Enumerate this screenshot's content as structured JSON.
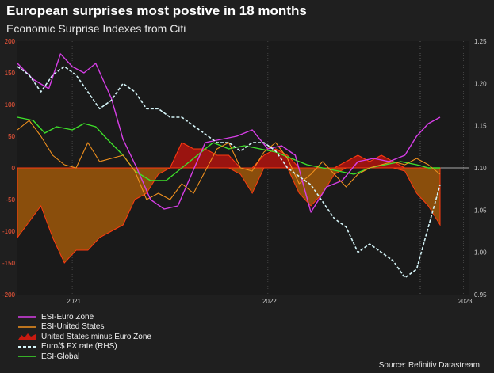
{
  "header": {
    "title": "European surprises most postive in 18 months",
    "subtitle": "Economic Surprise Indexes from Citi"
  },
  "source": "Source: Refinitiv Datastream",
  "chart_data": {
    "type": "line",
    "title": "European surprises most postive in 18 months",
    "subtitle": "Economic Surprise Indexes from Citi",
    "x_ticks": [
      "2021",
      "2022",
      "2023"
    ],
    "x_tick_values": [
      2021.0,
      2022.0,
      2023.0
    ],
    "xlim": [
      2020.72,
      2023.03
    ],
    "y_left_ticks": [
      200,
      150,
      100,
      50,
      0,
      -50,
      -100,
      -150,
      -200
    ],
    "ylim_left": [
      -200,
      200
    ],
    "y_right_ticks": [
      1.25,
      1.2,
      1.15,
      1.1,
      1.05,
      1.0,
      0.95
    ],
    "ylim_right": [
      0.95,
      1.25
    ],
    "legend": [
      {
        "label": "ESI-Euro Zone",
        "color": "#d63ee6",
        "style": "line"
      },
      {
        "label": "ESI-United States",
        "color": "#f0901e",
        "style": "line"
      },
      {
        "label": "United States minus Euro Zone",
        "color": "#c81a10",
        "style": "area"
      },
      {
        "label": "Euro/$ FX rate (RHS)",
        "color": "#d4f4f8",
        "style": "dashed"
      },
      {
        "label": "ESI-Global",
        "color": "#3ee02a",
        "style": "line"
      }
    ],
    "series": [
      {
        "name": "ESI-Euro Zone",
        "axis": "left",
        "color": "#d63ee6",
        "x": [
          2020.72,
          2020.8,
          2020.88,
          2020.94,
          2021.0,
          2021.06,
          2021.12,
          2021.2,
          2021.26,
          2021.33,
          2021.4,
          2021.47,
          2021.54,
          2021.61,
          2021.68,
          2021.76,
          2021.84,
          2021.92,
          2022.0,
          2022.07,
          2022.14,
          2022.22,
          2022.3,
          2022.38,
          2022.46,
          2022.54,
          2022.62,
          2022.7,
          2022.76,
          2022.82,
          2022.88
        ],
        "values": [
          165,
          140,
          125,
          180,
          160,
          150,
          165,
          110,
          45,
          0,
          -50,
          -65,
          -60,
          -10,
          40,
          45,
          50,
          60,
          30,
          35,
          20,
          -70,
          -30,
          -20,
          10,
          15,
          10,
          20,
          50,
          70,
          80
        ]
      },
      {
        "name": "ESI-United States",
        "axis": "left",
        "color": "#f0901e",
        "x": [
          2020.72,
          2020.78,
          2020.84,
          2020.9,
          2020.96,
          2021.02,
          2021.08,
          2021.14,
          2021.2,
          2021.26,
          2021.32,
          2021.38,
          2021.44,
          2021.5,
          2021.56,
          2021.62,
          2021.68,
          2021.74,
          2021.8,
          2021.86,
          2021.92,
          2021.98,
          2022.04,
          2022.1,
          2022.16,
          2022.22,
          2022.28,
          2022.34,
          2022.4,
          2022.46,
          2022.52,
          2022.58,
          2022.64,
          2022.7,
          2022.76,
          2022.82,
          2022.88
        ],
        "values": [
          60,
          75,
          50,
          20,
          5,
          0,
          40,
          10,
          15,
          20,
          -5,
          -50,
          -40,
          -50,
          -25,
          -40,
          -5,
          30,
          40,
          0,
          -5,
          25,
          40,
          15,
          -25,
          -10,
          10,
          -10,
          -30,
          -10,
          0,
          5,
          10,
          5,
          15,
          5,
          -10
        ]
      },
      {
        "name": "United States minus Euro Zone",
        "axis": "left",
        "color": "#c81a10",
        "x": [
          2020.72,
          2020.78,
          2020.84,
          2020.9,
          2020.96,
          2021.02,
          2021.08,
          2021.14,
          2021.2,
          2021.26,
          2021.32,
          2021.38,
          2021.44,
          2021.5,
          2021.56,
          2021.62,
          2021.68,
          2021.74,
          2021.8,
          2021.86,
          2021.92,
          2021.98,
          2022.04,
          2022.1,
          2022.16,
          2022.22,
          2022.28,
          2022.34,
          2022.4,
          2022.46,
          2022.52,
          2022.58,
          2022.64,
          2022.7,
          2022.76,
          2022.82,
          2022.88
        ],
        "values": [
          -110,
          -85,
          -60,
          -110,
          -150,
          -130,
          -130,
          -110,
          -100,
          -90,
          -50,
          -40,
          -10,
          0,
          40,
          30,
          30,
          20,
          20,
          -10,
          -40,
          20,
          30,
          20,
          -40,
          -60,
          -40,
          -10,
          10,
          20,
          10,
          20,
          10,
          -5,
          -40,
          -60,
          -90
        ]
      },
      {
        "name": "Euro/$ FX rate (RHS)",
        "axis": "right",
        "color": "#d4f4f8",
        "x": [
          2020.72,
          2020.78,
          2020.84,
          2020.9,
          2020.96,
          2021.02,
          2021.08,
          2021.14,
          2021.2,
          2021.26,
          2021.32,
          2021.38,
          2021.44,
          2021.5,
          2021.56,
          2021.62,
          2021.68,
          2021.74,
          2021.8,
          2021.86,
          2021.92,
          2021.98,
          2022.04,
          2022.1,
          2022.16,
          2022.22,
          2022.28,
          2022.34,
          2022.4,
          2022.46,
          2022.52,
          2022.58,
          2022.64,
          2022.7,
          2022.76,
          2022.82,
          2022.88
        ],
        "values": [
          1.22,
          1.21,
          1.19,
          1.21,
          1.22,
          1.21,
          1.19,
          1.17,
          1.18,
          1.2,
          1.19,
          1.17,
          1.17,
          1.16,
          1.16,
          1.15,
          1.14,
          1.13,
          1.13,
          1.12,
          1.13,
          1.13,
          1.12,
          1.1,
          1.09,
          1.08,
          1.06,
          1.04,
          1.03,
          1.0,
          1.01,
          1.0,
          0.99,
          0.97,
          0.98,
          1.03,
          1.08
        ]
      },
      {
        "name": "ESI-Global",
        "axis": "left",
        "color": "#3ee02a",
        "x": [
          2020.72,
          2020.8,
          2020.86,
          2020.92,
          2021.0,
          2021.06,
          2021.12,
          2021.18,
          2021.26,
          2021.32,
          2021.4,
          2021.48,
          2021.56,
          2021.64,
          2021.72,
          2021.8,
          2021.88,
          2021.96,
          2022.04,
          2022.12,
          2022.2,
          2022.28,
          2022.36,
          2022.44,
          2022.52,
          2022.6,
          2022.68,
          2022.76,
          2022.82,
          2022.88
        ],
        "values": [
          80,
          75,
          55,
          65,
          60,
          70,
          65,
          45,
          20,
          -5,
          -20,
          -20,
          0,
          20,
          40,
          30,
          35,
          30,
          25,
          15,
          5,
          0,
          -5,
          -10,
          0,
          5,
          10,
          5,
          0,
          0
        ]
      }
    ]
  }
}
